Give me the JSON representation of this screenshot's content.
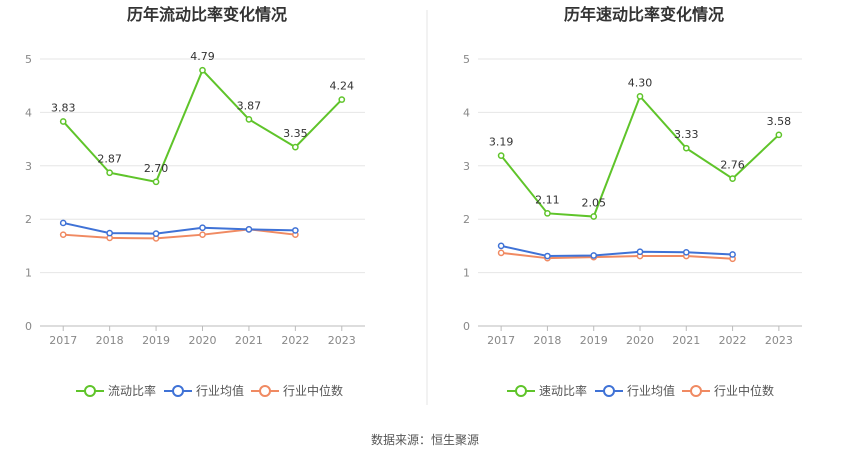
{
  "colors": {
    "main": "#5fc42a",
    "avg": "#3f72d6",
    "median": "#f08a62",
    "grid": "#e6e6e6",
    "divider": "#e0e0e0"
  },
  "chart_data": [
    {
      "type": "line",
      "title": "历年流动比率变化情况",
      "categories": [
        "2017",
        "2018",
        "2019",
        "2020",
        "2021",
        "2022",
        "2023"
      ],
      "ylim": [
        0,
        5
      ],
      "yticks": [
        "0",
        "1",
        "2",
        "3",
        "4",
        "5"
      ],
      "grid": true,
      "legend_position": "bottom",
      "series": [
        {
          "name": "流动比率",
          "color": "#5fc42a",
          "values": [
            3.83,
            2.87,
            2.7,
            4.79,
            3.87,
            3.35,
            4.24
          ],
          "labels": [
            "3.83",
            "2.87",
            "2.70",
            "4.79",
            "3.87",
            "3.35",
            "4.24"
          ]
        },
        {
          "name": "行业均值",
          "color": "#3f72d6",
          "values": [
            1.93,
            1.74,
            1.73,
            1.84,
            1.81,
            1.79,
            null
          ]
        },
        {
          "name": "行业中位数",
          "color": "#f08a62",
          "values": [
            1.71,
            1.65,
            1.64,
            1.71,
            1.81,
            1.71,
            null
          ]
        }
      ]
    },
    {
      "type": "line",
      "title": "历年速动比率变化情况",
      "categories": [
        "2017",
        "2018",
        "2019",
        "2020",
        "2021",
        "2022",
        "2023"
      ],
      "ylim": [
        0,
        5
      ],
      "yticks": [
        "0",
        "1",
        "2",
        "3",
        "4",
        "5"
      ],
      "grid": true,
      "legend_position": "bottom",
      "series": [
        {
          "name": "速动比率",
          "color": "#5fc42a",
          "values": [
            3.19,
            2.11,
            2.05,
            4.3,
            3.33,
            2.76,
            3.58
          ],
          "labels": [
            "3.19",
            "2.11",
            "2.05",
            "4.30",
            "3.33",
            "2.76",
            "3.58"
          ]
        },
        {
          "name": "行业均值",
          "color": "#3f72d6",
          "values": [
            1.5,
            1.31,
            1.32,
            1.39,
            1.38,
            1.34,
            null
          ]
        },
        {
          "name": "行业中位数",
          "color": "#f08a62",
          "values": [
            1.37,
            1.27,
            1.29,
            1.31,
            1.31,
            1.26,
            null
          ]
        }
      ]
    }
  ],
  "footer": {
    "source": "数据来源：恒生聚源"
  }
}
